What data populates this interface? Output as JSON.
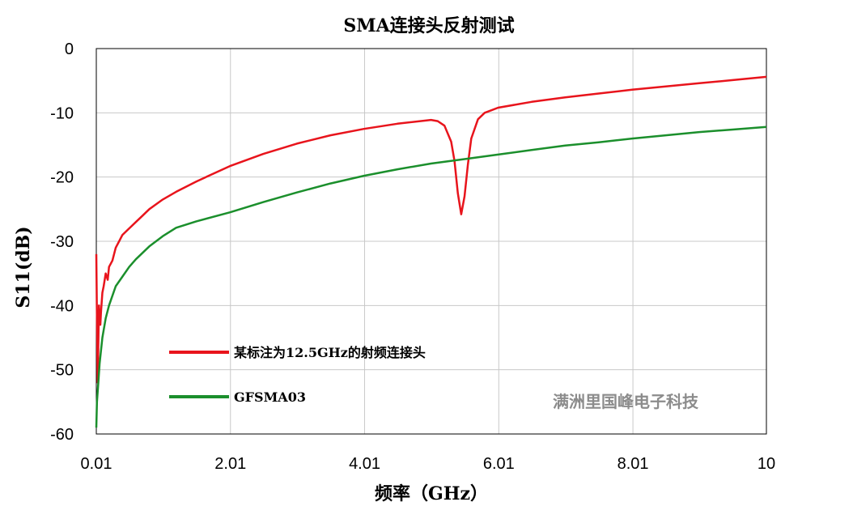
{
  "chart_data": {
    "type": "line",
    "title": "SMA连接头反射测试",
    "xlabel": "频率（GHz）",
    "ylabel": "S11(dB)",
    "xlim": [
      0.01,
      10
    ],
    "ylim": [
      -60,
      0
    ],
    "x_ticks": [
      0.01,
      2.01,
      4.01,
      6.01,
      8.01,
      10
    ],
    "x_tick_labels": [
      "0.01",
      "2.01",
      "4.01",
      "6.01",
      "8.01",
      "10"
    ],
    "y_ticks": [
      0,
      -10,
      -20,
      -30,
      -40,
      -50,
      -60
    ],
    "y_tick_labels": [
      "0",
      "-10",
      "-20",
      "-30",
      "-40",
      "-50",
      "-60"
    ],
    "grid": true,
    "legend_position": "lower-left",
    "watermark": "满洲里国峰电子科技",
    "series": [
      {
        "name": "某标注为12.5GHz的射频连接头",
        "color": "#e8141c",
        "x": [
          0.01,
          0.02,
          0.03,
          0.05,
          0.06,
          0.07,
          0.08,
          0.1,
          0.12,
          0.15,
          0.18,
          0.2,
          0.25,
          0.3,
          0.35,
          0.4,
          0.5,
          0.6,
          0.7,
          0.8,
          1.0,
          1.2,
          1.5,
          2.0,
          2.5,
          3.0,
          3.5,
          4.0,
          4.5,
          5.0,
          5.1,
          5.2,
          5.3,
          5.35,
          5.4,
          5.45,
          5.5,
          5.55,
          5.6,
          5.7,
          5.8,
          5.9,
          6.0,
          6.5,
          7.0,
          7.5,
          8.0,
          8.5,
          9.0,
          9.5,
          10.0
        ],
        "y": [
          -32,
          -42,
          -52,
          -40,
          -42,
          -43,
          -41,
          -38,
          -37,
          -35,
          -36,
          -34,
          -33,
          -31,
          -30,
          -29,
          -28,
          -27,
          -26,
          -25,
          -23.5,
          -22.3,
          -20.7,
          -18.3,
          -16.4,
          -14.8,
          -13.5,
          -12.5,
          -11.7,
          -11.1,
          -11.3,
          -12.0,
          -14.5,
          -17.5,
          -22.5,
          -25.8,
          -23.0,
          -18.0,
          -14.0,
          -11.0,
          -10.0,
          -9.6,
          -9.2,
          -8.3,
          -7.6,
          -7.0,
          -6.4,
          -5.9,
          -5.4,
          -4.9,
          -4.4
        ]
      },
      {
        "name": "GFSMA03",
        "color": "#1b8f2c",
        "x": [
          0.01,
          0.02,
          0.04,
          0.06,
          0.08,
          0.1,
          0.15,
          0.2,
          0.3,
          0.4,
          0.5,
          0.6,
          0.8,
          1.0,
          1.2,
          1.5,
          2.0,
          2.5,
          3.0,
          3.5,
          4.0,
          4.5,
          5.0,
          5.5,
          6.0,
          6.5,
          7.0,
          7.5,
          8.0,
          8.5,
          9.0,
          9.5,
          10.0
        ],
        "y": [
          -59,
          -55,
          -52,
          -49,
          -47,
          -45,
          -42,
          -40,
          -37,
          -35.5,
          -34,
          -32.8,
          -30.8,
          -29.2,
          -27.9,
          -26.9,
          -25.5,
          -23.9,
          -22.4,
          -21.0,
          -19.8,
          -18.8,
          -17.9,
          -17.2,
          -16.5,
          -15.8,
          -15.1,
          -14.6,
          -14.0,
          -13.5,
          -13.0,
          -12.6,
          -12.2
        ]
      }
    ]
  }
}
